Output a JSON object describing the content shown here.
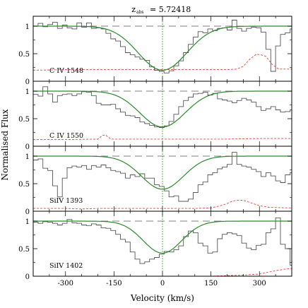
{
  "chart_data": {
    "type": "line",
    "title_z": "z",
    "title_sub": "abs",
    "title_value": "= 5.72418",
    "xlabel": "Velocity  (km/s)",
    "ylabel": "Normalised Flux",
    "xlim": [
      -400,
      400
    ],
    "x_ticks": [
      -300,
      -150,
      0,
      150,
      300
    ],
    "y_ticks": [
      0,
      0.5,
      1
    ],
    "x_ticklabels": [
      "-300",
      "-150",
      "0",
      "150",
      "300"
    ],
    "y_ticklabels": [
      "0",
      "0.5",
      "1"
    ],
    "colors": {
      "data": "#555555",
      "fit": "#2a8a2a",
      "error": "#e8413c",
      "continuum": "#555555",
      "center": "#2a9a2a"
    },
    "panels": [
      {
        "label": "C IV 1548",
        "ylim": [
          0,
          1.18
        ],
        "fit": {
          "depth": 0.8,
          "sigma": 75
        },
        "data": [
          [
            -400,
            1.0
          ],
          [
            -385,
            1.05
          ],
          [
            -370,
            0.99
          ],
          [
            -355,
            1.03
          ],
          [
            -340,
            1.07
          ],
          [
            -325,
            0.96
          ],
          [
            -310,
            1.02
          ],
          [
            -295,
            0.97
          ],
          [
            -280,
            0.95
          ],
          [
            -265,
            1.06
          ],
          [
            -250,
            0.98
          ],
          [
            -235,
            1.06
          ],
          [
            -220,
            0.96
          ],
          [
            -205,
            0.97
          ],
          [
            -190,
            0.95
          ],
          [
            -175,
            0.87
          ],
          [
            -160,
            0.77
          ],
          [
            -145,
            0.73
          ],
          [
            -130,
            0.63
          ],
          [
            -115,
            0.52
          ],
          [
            -100,
            0.48
          ],
          [
            -85,
            0.44
          ],
          [
            -70,
            0.4
          ],
          [
            -55,
            0.38
          ],
          [
            -40,
            0.26
          ],
          [
            -25,
            0.2
          ],
          [
            -10,
            0.18
          ],
          [
            5,
            0.15
          ],
          [
            20,
            0.19
          ],
          [
            35,
            0.28
          ],
          [
            50,
            0.37
          ],
          [
            65,
            0.52
          ],
          [
            80,
            0.67
          ],
          [
            95,
            0.8
          ],
          [
            110,
            0.9
          ],
          [
            125,
            0.88
          ],
          [
            140,
            0.95
          ],
          [
            155,
            0.92
          ],
          [
            170,
            0.96
          ],
          [
            185,
            0.97
          ],
          [
            200,
            0.93
          ],
          [
            215,
            1.11
          ],
          [
            230,
            0.96
          ],
          [
            245,
            0.91
          ],
          [
            260,
            0.96
          ],
          [
            275,
            0.98
          ],
          [
            290,
            0.97
          ],
          [
            305,
            0.89
          ],
          [
            320,
            0.58
          ],
          [
            335,
            0.18
          ],
          [
            350,
            0.64
          ],
          [
            365,
            0.85
          ],
          [
            380,
            0.88
          ],
          [
            395,
            0.95
          ],
          [
            400,
            0.97
          ]
        ],
        "error": [
          [
            -400,
            0.2
          ],
          [
            -300,
            0.21
          ],
          [
            -200,
            0.21
          ],
          [
            -100,
            0.21
          ],
          [
            0,
            0.21
          ],
          [
            100,
            0.21
          ],
          [
            200,
            0.21
          ],
          [
            230,
            0.22
          ],
          [
            250,
            0.27
          ],
          [
            270,
            0.4
          ],
          [
            290,
            0.49
          ],
          [
            305,
            0.48
          ],
          [
            320,
            0.45
          ],
          [
            340,
            0.3
          ],
          [
            360,
            0.22
          ],
          [
            400,
            0.22
          ]
        ]
      },
      {
        "label": "C IV 1550",
        "ylim": [
          0,
          1.18
        ],
        "fit": {
          "depth": 0.65,
          "sigma": 70
        },
        "data": [
          [
            -400,
            0.94
          ],
          [
            -385,
            0.91
          ],
          [
            -370,
            1.08
          ],
          [
            -355,
            0.95
          ],
          [
            -340,
            0.8
          ],
          [
            -325,
            0.92
          ],
          [
            -310,
            0.94
          ],
          [
            -295,
            0.95
          ],
          [
            -280,
            0.92
          ],
          [
            -265,
            0.95
          ],
          [
            -250,
            0.99
          ],
          [
            -235,
            0.98
          ],
          [
            -220,
            0.92
          ],
          [
            -205,
            0.78
          ],
          [
            -190,
            0.75
          ],
          [
            -175,
            0.75
          ],
          [
            -160,
            0.76
          ],
          [
            -145,
            0.68
          ],
          [
            -130,
            0.62
          ],
          [
            -115,
            0.56
          ],
          [
            -100,
            0.55
          ],
          [
            -85,
            0.52
          ],
          [
            -70,
            0.44
          ],
          [
            -55,
            0.41
          ],
          [
            -40,
            0.38
          ],
          [
            -25,
            0.35
          ],
          [
            -10,
            0.34
          ],
          [
            5,
            0.37
          ],
          [
            20,
            0.45
          ],
          [
            35,
            0.58
          ],
          [
            50,
            0.72
          ],
          [
            65,
            0.83
          ],
          [
            80,
            0.89
          ],
          [
            95,
            0.95
          ],
          [
            110,
            0.96
          ],
          [
            125,
            0.98
          ],
          [
            140,
            0.93
          ],
          [
            155,
            0.96
          ],
          [
            170,
            0.86
          ],
          [
            185,
            0.84
          ],
          [
            200,
            0.82
          ],
          [
            215,
            0.79
          ],
          [
            230,
            0.83
          ],
          [
            245,
            0.87
          ],
          [
            260,
            0.84
          ],
          [
            275,
            0.8
          ],
          [
            290,
            0.72
          ],
          [
            305,
            0.65
          ],
          [
            320,
            0.68
          ],
          [
            335,
            0.72
          ],
          [
            350,
            0.66
          ],
          [
            365,
            0.62
          ],
          [
            380,
            0.63
          ],
          [
            395,
            0.66
          ],
          [
            400,
            0.66
          ]
        ],
        "error": [
          [
            -400,
            0.12
          ],
          [
            -300,
            0.12
          ],
          [
            -200,
            0.13
          ],
          [
            -185,
            0.2
          ],
          [
            -175,
            0.2
          ],
          [
            -160,
            0.13
          ],
          [
            -100,
            0.13
          ],
          [
            0,
            0.13
          ],
          [
            100,
            0.13
          ],
          [
            200,
            0.13
          ],
          [
            300,
            0.14
          ],
          [
            400,
            0.14
          ]
        ]
      },
      {
        "label": "SiIV 1393",
        "ylim": [
          0,
          1.18
        ],
        "fit": {
          "depth": 0.6,
          "sigma": 65
        },
        "data": [
          [
            -400,
            0.93
          ],
          [
            -385,
            0.95
          ],
          [
            -370,
            0.78
          ],
          [
            -355,
            0.74
          ],
          [
            -340,
            0.46
          ],
          [
            -325,
            0.26
          ],
          [
            -310,
            0.6
          ],
          [
            -295,
            0.79
          ],
          [
            -280,
            0.82
          ],
          [
            -265,
            0.8
          ],
          [
            -250,
            0.83
          ],
          [
            -235,
            0.76
          ],
          [
            -220,
            0.83
          ],
          [
            -205,
            0.8
          ],
          [
            -190,
            0.84
          ],
          [
            -175,
            0.79
          ],
          [
            -160,
            0.74
          ],
          [
            -145,
            0.72
          ],
          [
            -130,
            0.69
          ],
          [
            -115,
            0.6
          ],
          [
            -100,
            0.66
          ],
          [
            -85,
            0.63
          ],
          [
            -70,
            0.68
          ],
          [
            -55,
            0.6
          ],
          [
            -40,
            0.6
          ],
          [
            -25,
            0.48
          ],
          [
            -10,
            0.45
          ],
          [
            5,
            0.37
          ],
          [
            20,
            0.26
          ],
          [
            35,
            0.28
          ],
          [
            50,
            0.18
          ],
          [
            65,
            0.18
          ],
          [
            80,
            0.22
          ],
          [
            95,
            0.34
          ],
          [
            110,
            0.48
          ],
          [
            125,
            0.53
          ],
          [
            140,
            0.66
          ],
          [
            155,
            0.7
          ],
          [
            170,
            0.77
          ],
          [
            185,
            0.8
          ],
          [
            200,
            0.85
          ],
          [
            215,
            1.07
          ],
          [
            230,
            0.85
          ],
          [
            245,
            0.82
          ],
          [
            260,
            0.8
          ],
          [
            275,
            0.76
          ],
          [
            290,
            0.72
          ],
          [
            305,
            0.63
          ],
          [
            320,
            0.7
          ],
          [
            335,
            0.64
          ],
          [
            350,
            0.55
          ],
          [
            365,
            0.52
          ],
          [
            380,
            0.66
          ],
          [
            395,
            0.7
          ],
          [
            400,
            0.72
          ]
        ],
        "error": [
          [
            -400,
            0.05
          ],
          [
            -300,
            0.05
          ],
          [
            -250,
            0.04
          ],
          [
            -200,
            0.05
          ],
          [
            -100,
            0.05
          ],
          [
            0,
            0.05
          ],
          [
            100,
            0.05
          ],
          [
            150,
            0.06
          ],
          [
            180,
            0.1
          ],
          [
            200,
            0.14
          ],
          [
            215,
            0.18
          ],
          [
            230,
            0.2
          ],
          [
            250,
            0.2
          ],
          [
            270,
            0.16
          ],
          [
            300,
            0.1
          ],
          [
            330,
            0.07
          ],
          [
            400,
            0.06
          ]
        ]
      },
      {
        "label": "SiIV 1402",
        "ylim": [
          0,
          1.18
        ],
        "fit": {
          "depth": 0.58,
          "sigma": 60
        },
        "data": [
          [
            -400,
            0.98
          ],
          [
            -385,
            0.96
          ],
          [
            -370,
            0.99
          ],
          [
            -355,
            0.98
          ],
          [
            -340,
            0.96
          ],
          [
            -325,
            0.93
          ],
          [
            -310,
            0.96
          ],
          [
            -295,
            1.03
          ],
          [
            -280,
            0.97
          ],
          [
            -265,
            0.96
          ],
          [
            -250,
            0.93
          ],
          [
            -235,
            0.92
          ],
          [
            -220,
            0.95
          ],
          [
            -205,
            0.93
          ],
          [
            -190,
            0.88
          ],
          [
            -175,
            0.87
          ],
          [
            -160,
            0.83
          ],
          [
            -145,
            0.76
          ],
          [
            -130,
            0.67
          ],
          [
            -115,
            0.62
          ],
          [
            -100,
            0.44
          ],
          [
            -85,
            0.31
          ],
          [
            -70,
            0.23
          ],
          [
            -55,
            0.26
          ],
          [
            -40,
            0.31
          ],
          [
            -25,
            0.34
          ],
          [
            -10,
            0.4
          ],
          [
            5,
            0.45
          ],
          [
            20,
            0.44
          ],
          [
            35,
            0.48
          ],
          [
            50,
            0.55
          ],
          [
            65,
            0.72
          ],
          [
            80,
            0.82
          ],
          [
            95,
            0.79
          ],
          [
            110,
            0.6
          ],
          [
            125,
            0.55
          ],
          [
            140,
            0.42
          ],
          [
            155,
            0.44
          ],
          [
            170,
            0.68
          ],
          [
            185,
            0.76
          ],
          [
            200,
            0.79
          ],
          [
            215,
            0.77
          ],
          [
            230,
            0.74
          ],
          [
            245,
            0.6
          ],
          [
            260,
            0.51
          ],
          [
            275,
            0.48
          ],
          [
            290,
            0.56
          ],
          [
            305,
            0.58
          ],
          [
            320,
            0.79
          ],
          [
            335,
            0.86
          ],
          [
            350,
            1.06
          ],
          [
            365,
            0.58
          ],
          [
            380,
            0.5
          ],
          [
            395,
            0.2
          ],
          [
            400,
            0.4
          ]
        ],
        "error": [
          [
            -400,
            0.0
          ],
          [
            -200,
            0.0
          ],
          [
            0,
            0.0
          ],
          [
            150,
            0.0
          ],
          [
            200,
            0.01
          ],
          [
            250,
            0.02
          ],
          [
            300,
            0.04
          ],
          [
            350,
            0.1
          ],
          [
            380,
            0.13
          ],
          [
            400,
            0.14
          ]
        ]
      }
    ]
  }
}
